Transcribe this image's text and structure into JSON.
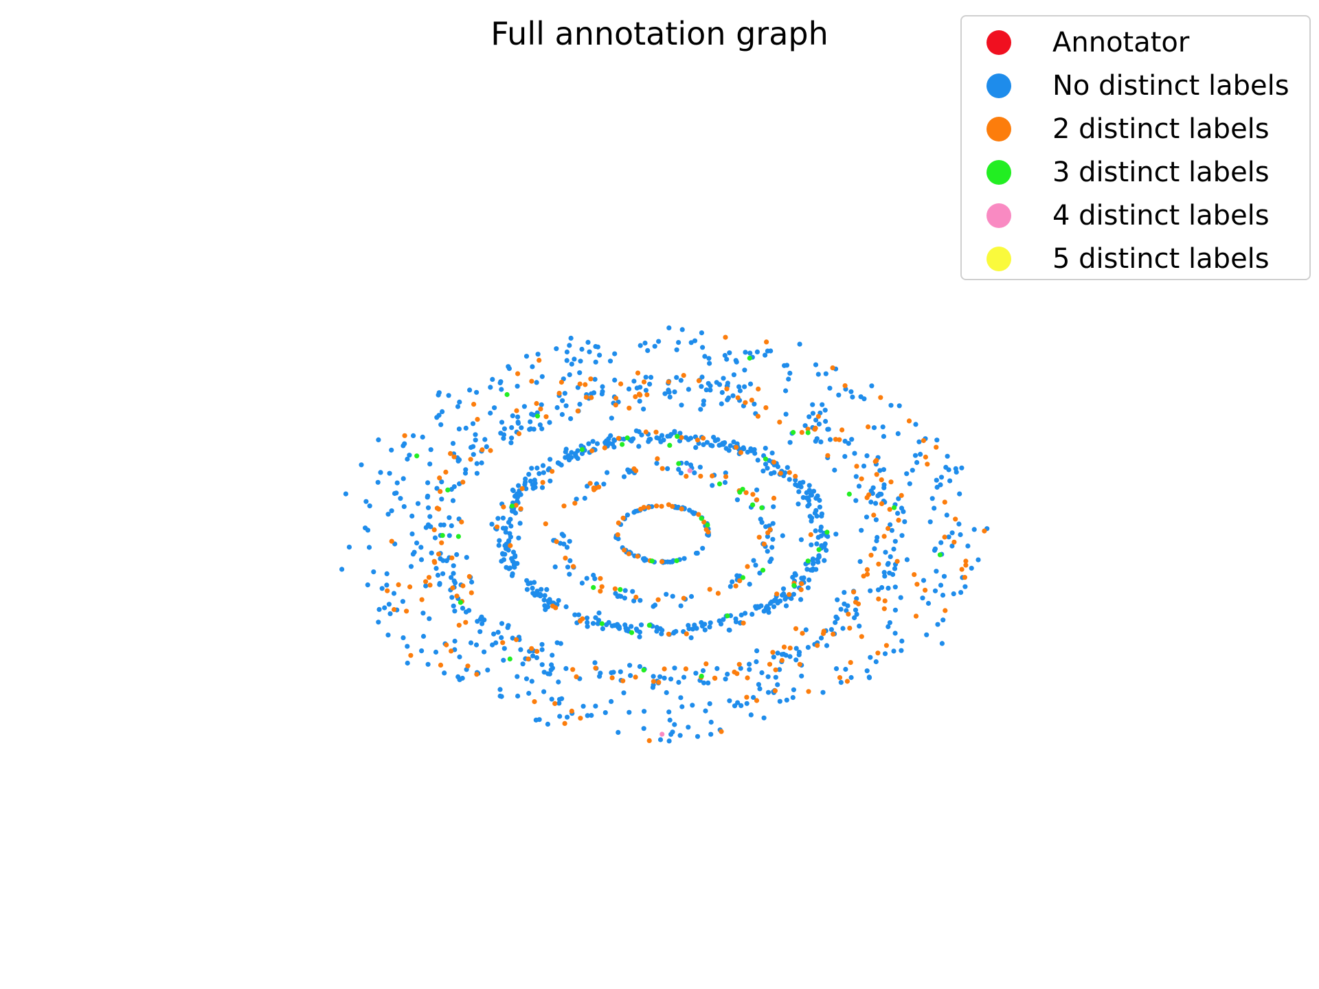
{
  "chart_data": {
    "type": "scatter",
    "title": "Full annotation graph",
    "axes_visible": false,
    "grid": false,
    "legend_position": "top-right",
    "legend": [
      {
        "label": "Annotator",
        "color": "#f01020"
      },
      {
        "label": "No distinct labels",
        "color": "#1e8ceb"
      },
      {
        "label": "2 distinct labels",
        "color": "#fc7d0c"
      },
      {
        "label": "3 distinct labels",
        "color": "#22ee22"
      },
      {
        "label": "4 distinct labels",
        "color": "#f98ac2"
      },
      {
        "label": "5 distinct labels",
        "color": "#fafa3c"
      }
    ],
    "layout": "concentric-rings",
    "rings": [
      {
        "rx": 0.16,
        "ry": 0.14,
        "blue": 60,
        "orange": 20,
        "green": 4,
        "pink": 0
      },
      {
        "rx": 0.37,
        "ry": 0.33,
        "blue": 90,
        "orange": 40,
        "green": 10,
        "pink": 1
      },
      {
        "rx": 0.55,
        "ry": 0.48,
        "blue": 420,
        "orange": 35,
        "green": 15,
        "pink": 0
      },
      {
        "rx": 0.79,
        "ry": 0.72,
        "blue": 380,
        "orange": 140,
        "green": 12,
        "pink": 0
      },
      {
        "rx": 1.0,
        "ry": 0.92,
        "blue": 320,
        "orange": 60,
        "green": 4,
        "pink": 1
      }
    ]
  }
}
